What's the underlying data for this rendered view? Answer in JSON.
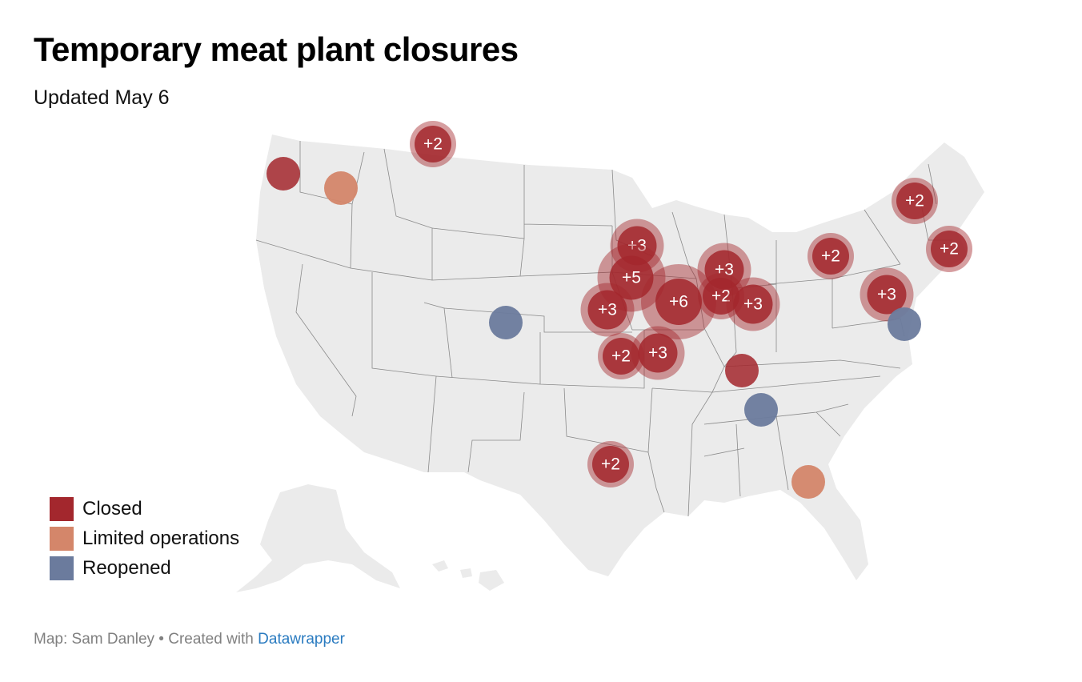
{
  "title": "Temporary meat plant closures",
  "subtitle": "Updated May 6",
  "legend": [
    {
      "label": "Closed",
      "color": "#a3272d"
    },
    {
      "label": "Limited operations",
      "color": "#d4866a"
    },
    {
      "label": "Reopened",
      "color": "#6b7b9d"
    }
  ],
  "footer": {
    "prefix": "Map: Sam Danley • Created with ",
    "link": "Datawrapper"
  },
  "markers": [
    {
      "region": "Montana",
      "status": "closed",
      "count": "+2"
    },
    {
      "region": "Washington (west)",
      "status": "closed",
      "count": ""
    },
    {
      "region": "Washington (east)",
      "status": "limited",
      "count": ""
    },
    {
      "region": "Minnesota",
      "status": "closed",
      "count": "+3"
    },
    {
      "region": "South Dakota / Iowa",
      "status": "closed",
      "count": "+5"
    },
    {
      "region": "Nebraska",
      "status": "closed",
      "count": "+3"
    },
    {
      "region": "Iowa",
      "status": "closed",
      "count": "+6"
    },
    {
      "region": "Wisconsin",
      "status": "closed",
      "count": "+3"
    },
    {
      "region": "Illinois",
      "status": "closed",
      "count": "+2"
    },
    {
      "region": "Indiana",
      "status": "closed",
      "count": "+3"
    },
    {
      "region": "Colorado",
      "status": "reopened",
      "count": ""
    },
    {
      "region": "Kansas",
      "status": "closed",
      "count": "+2"
    },
    {
      "region": "Missouri",
      "status": "closed",
      "count": "+3"
    },
    {
      "region": "Kentucky",
      "status": "closed",
      "count": ""
    },
    {
      "region": "Tennessee",
      "status": "reopened",
      "count": ""
    },
    {
      "region": "Texas",
      "status": "closed",
      "count": "+2"
    },
    {
      "region": "Georgia",
      "status": "limited",
      "count": ""
    },
    {
      "region": "Ohio",
      "status": "closed",
      "count": "+2"
    },
    {
      "region": "Pennsylvania",
      "status": "closed",
      "count": "+3"
    },
    {
      "region": "Delaware",
      "status": "reopened",
      "count": ""
    },
    {
      "region": "New York",
      "status": "closed",
      "count": "+2"
    },
    {
      "region": "Massachusetts",
      "status": "closed",
      "count": "+2"
    }
  ]
}
